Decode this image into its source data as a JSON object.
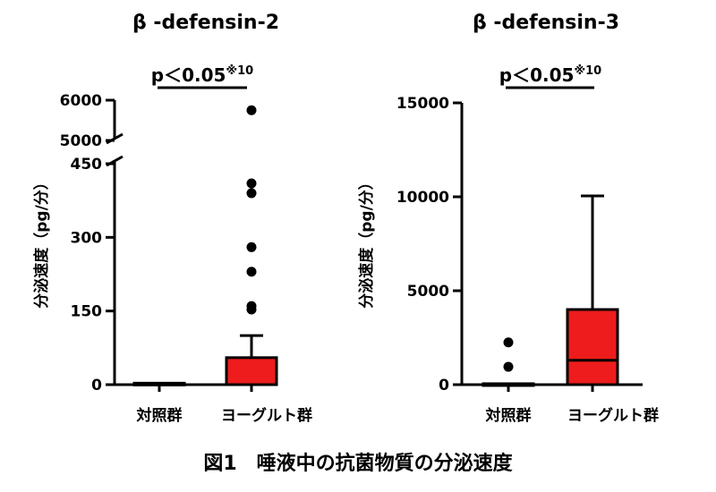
{
  "caption": "図1　唾液中の抗菌物質の分泌速度",
  "colors": {
    "control": "#ffffff",
    "yogurt": "#ee1c1c",
    "stroke": "#000000"
  },
  "chart_data": [
    {
      "type": "box",
      "title": "β -defensin-2",
      "ylabel": "分泌速度（pg/分）",
      "yticks": [
        "0",
        "150",
        "300",
        "450",
        "5000",
        "6000"
      ],
      "axis_break": {
        "lower_max": 450,
        "upper_min": 5000,
        "upper_max": 6000
      },
      "significance": {
        "label": "p＜0.05",
        "sup": "※10"
      },
      "categories": [
        "対照群",
        "ヨーグルト群"
      ],
      "boxes": [
        {
          "name": "対照群",
          "min": 0,
          "q1": 0,
          "median": 0,
          "q3": 3,
          "max": 3,
          "outliers": []
        },
        {
          "name": "ヨーグルト群",
          "min": 0,
          "q1": 0,
          "median": 0,
          "q3": 55,
          "max": 100,
          "outliers": [
            153,
            160,
            230,
            280,
            390,
            410,
            5750
          ]
        }
      ]
    },
    {
      "type": "box",
      "title": "β -defensin-3",
      "ylabel": "分泌速度（pg/分）",
      "yticks": [
        "0",
        "5000",
        "10000",
        "15000"
      ],
      "ylim": [
        0,
        15000
      ],
      "significance": {
        "label": "p＜0.05",
        "sup": "※10"
      },
      "categories": [
        "対照群",
        "ヨーグルト群"
      ],
      "boxes": [
        {
          "name": "対照群",
          "min": 0,
          "q1": 0,
          "median": 0,
          "q3": 50,
          "max": 50,
          "outliers": [
            950,
            2250
          ]
        },
        {
          "name": "ヨーグルト群",
          "min": 0,
          "q1": 0,
          "median": 1300,
          "q3": 4000,
          "max": 10050,
          "outliers": []
        }
      ]
    }
  ]
}
